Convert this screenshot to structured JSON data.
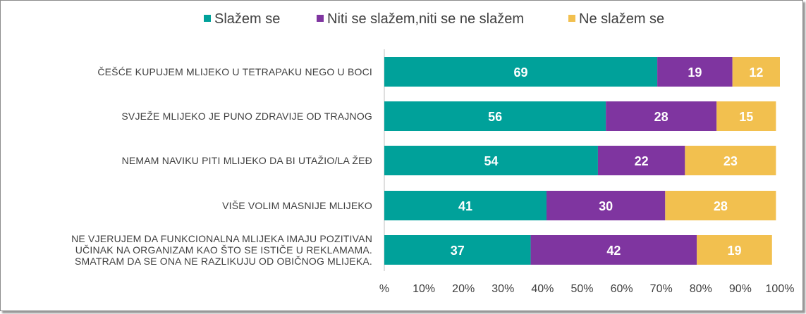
{
  "chart_data": {
    "type": "bar",
    "orientation": "horizontal",
    "stacked": true,
    "categories": [
      [
        "ČEŠĆE KUPUJEM MLIJEKO U TETRAPAKU  NEGO U BOCI"
      ],
      [
        "SVJEŽE MLIJEKO JE PUNO ZDRAVIJE  OD TRAJNOG"
      ],
      [
        "NEMAM  NAVIKU PITI MLIJEKO DA BI UTAŽIO/LA ŽEĐ"
      ],
      [
        "VIŠE VOLIM MASNIJE MLIJEKO"
      ],
      [
        "NE VJERUJEM DA FUNKCIONALNA  MLIJEKA IMAJU POZITIVAN",
        "UČINAK NA ORGANIZAM  KAO ŠTO SE ISTIČE U REKLAMAMA.",
        "SMATRAM  DA SE ONA NE RAZLIKUJU  OD OBIČNOG MLIJEKA."
      ]
    ],
    "series": [
      {
        "name": "Slažem se",
        "color": "#00a19a",
        "values": [
          69,
          56,
          54,
          41,
          37
        ]
      },
      {
        "name": "Niti se slažem,niti se ne slažem",
        "color": "#7f35a0",
        "values": [
          19,
          28,
          22,
          30,
          42
        ]
      },
      {
        "name": "Ne slažem se",
        "color": "#f2c04f",
        "values": [
          12,
          15,
          23,
          28,
          19
        ]
      }
    ],
    "xlim": [
      0,
      100
    ],
    "xticks": [
      "%",
      "10%",
      "20%",
      "30%",
      "40%",
      "50%",
      "60%",
      "70%",
      "80%",
      "90%",
      "100%"
    ],
    "legend_position": "top",
    "grid": false
  }
}
